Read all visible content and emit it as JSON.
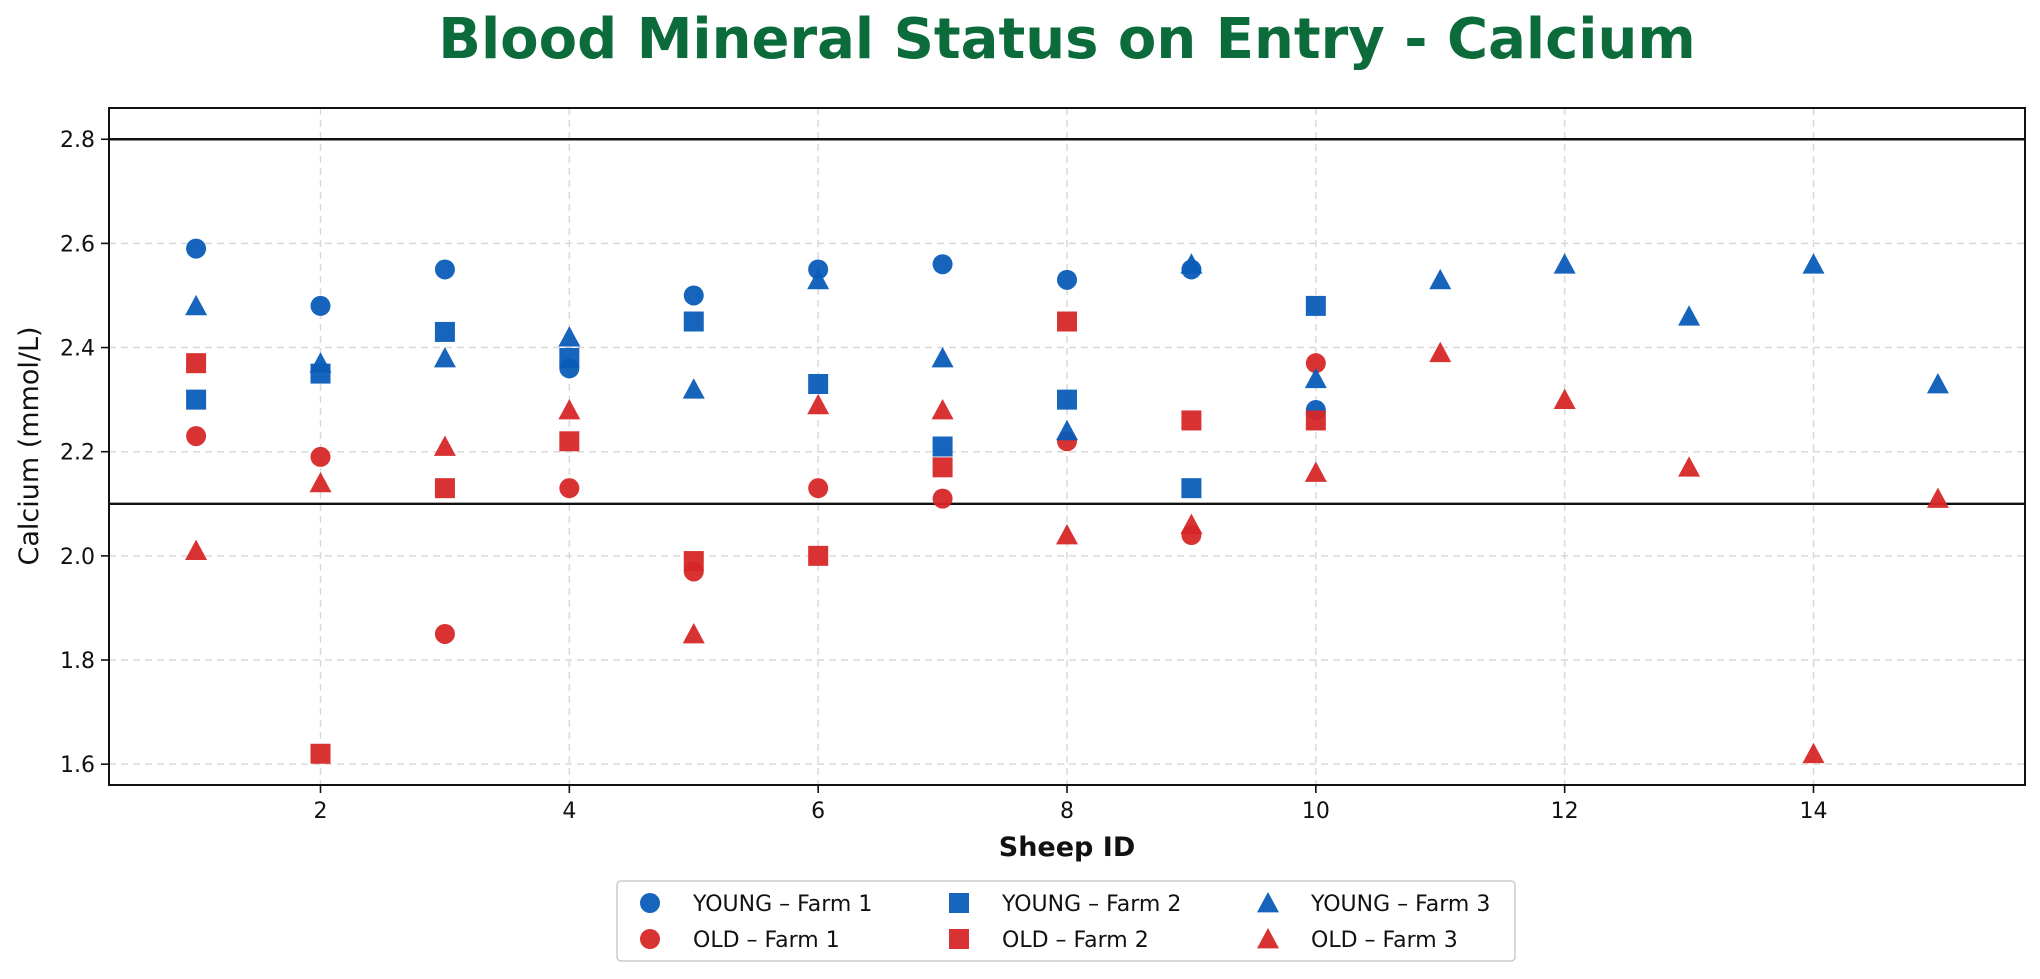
{
  "chart_data": {
    "type": "scatter",
    "title": "Blood Mineral Status on Entry - Calcium",
    "xlabel": "Sheep ID",
    "ylabel": "Calcium (mmol/L)",
    "xlim": [
      0.3,
      15.7
    ],
    "ylim": [
      1.56,
      2.86
    ],
    "xticks": [
      2,
      4,
      6,
      8,
      10,
      12,
      14
    ],
    "yticks": [
      1.6,
      1.8,
      2.0,
      2.2,
      2.4,
      2.6,
      2.8
    ],
    "grid": true,
    "reference_lines": [
      2.1,
      2.8
    ],
    "legend_position": "bottom-center",
    "colors": {
      "young": "#0a5cb8",
      "old": "#d62728",
      "title": "#0b6b3a"
    },
    "series": [
      {
        "name": "YOUNG – Farm 1",
        "marker": "circle",
        "color": "#0a5cb8",
        "x": [
          1,
          2,
          3,
          4,
          5,
          6,
          7,
          8,
          9,
          10
        ],
        "y": [
          2.59,
          2.48,
          2.55,
          2.36,
          2.5,
          2.55,
          2.56,
          2.53,
          2.55,
          2.28
        ]
      },
      {
        "name": "OLD – Farm 1",
        "marker": "circle",
        "color": "#d62728",
        "x": [
          1,
          2,
          3,
          4,
          5,
          6,
          7,
          8,
          9,
          10
        ],
        "y": [
          2.23,
          2.19,
          1.85,
          2.13,
          1.97,
          2.13,
          2.11,
          2.22,
          2.04,
          2.37
        ]
      },
      {
        "name": "YOUNG – Farm 2",
        "marker": "square",
        "color": "#0a5cb8",
        "x": [
          1,
          2,
          3,
          4,
          5,
          6,
          7,
          8,
          9,
          10
        ],
        "y": [
          2.3,
          2.35,
          2.43,
          2.38,
          2.45,
          2.33,
          2.21,
          2.3,
          2.13,
          2.48
        ]
      },
      {
        "name": "OLD – Farm 2",
        "marker": "square",
        "color": "#d62728",
        "x": [
          1,
          2,
          3,
          4,
          5,
          6,
          7,
          8,
          9,
          10
        ],
        "y": [
          2.37,
          1.62,
          2.13,
          2.22,
          1.99,
          2.0,
          2.17,
          2.45,
          2.26,
          2.26
        ]
      },
      {
        "name": "YOUNG – Farm 3",
        "marker": "triangle",
        "color": "#0a5cb8",
        "x": [
          1,
          2,
          3,
          4,
          5,
          6,
          7,
          8,
          9,
          10,
          11,
          12,
          13,
          14,
          15
        ],
        "y": [
          2.48,
          2.37,
          2.38,
          2.42,
          2.32,
          2.53,
          2.38,
          2.24,
          2.56,
          2.34,
          2.53,
          2.56,
          2.46,
          2.56,
          2.33
        ]
      },
      {
        "name": "OLD – Farm 3",
        "marker": "triangle",
        "color": "#d62728",
        "x": [
          1,
          2,
          3,
          4,
          5,
          6,
          7,
          8,
          9,
          10,
          11,
          12,
          13,
          14,
          15
        ],
        "y": [
          2.01,
          2.14,
          2.21,
          2.28,
          1.85,
          2.29,
          2.28,
          2.04,
          2.06,
          2.16,
          2.39,
          2.3,
          2.17,
          1.62,
          2.11
        ]
      }
    ]
  }
}
